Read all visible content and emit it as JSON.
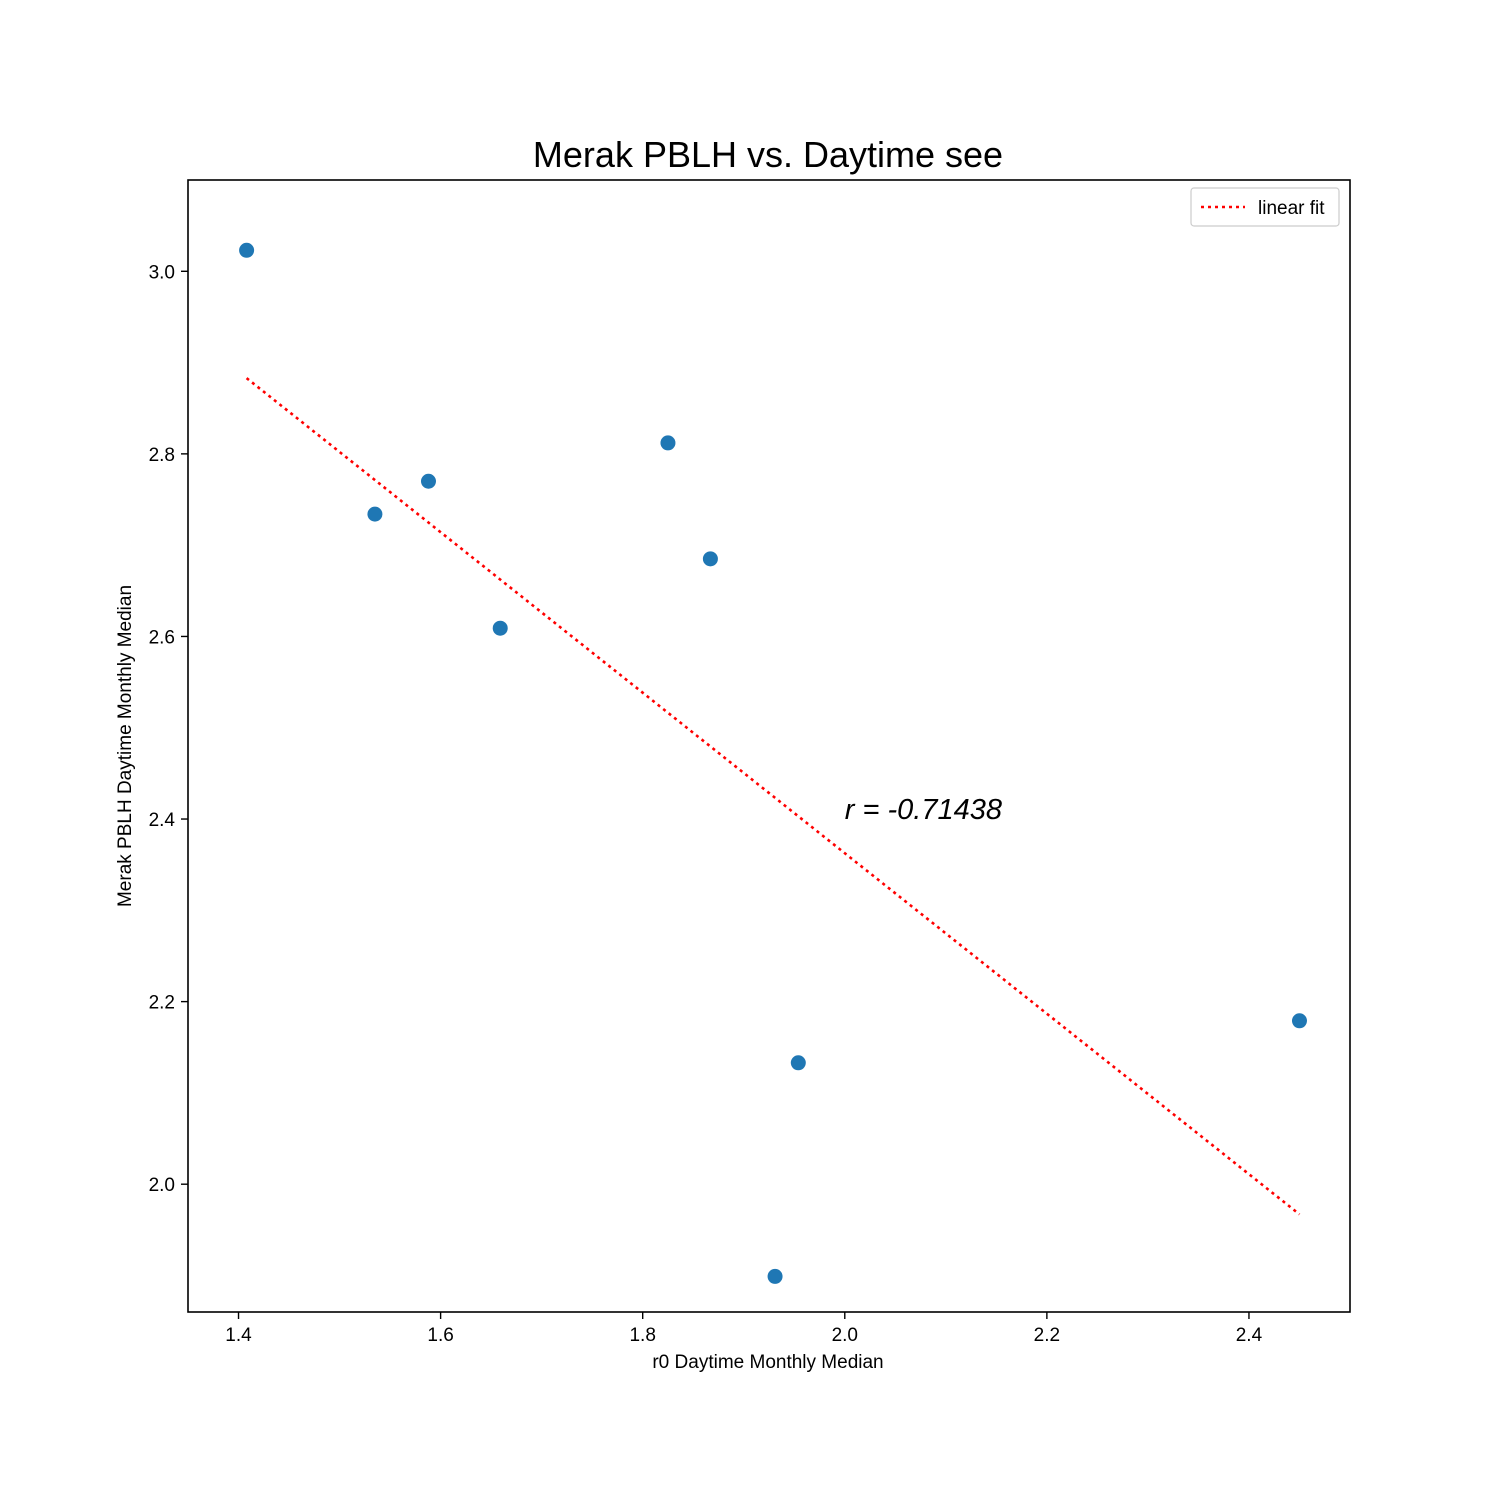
{
  "chart_data": {
    "type": "scatter",
    "title": "Merak PBLH vs. Daytime see",
    "xlabel": "r0 Daytime Monthly Median",
    "ylabel": "Merak PBLH Daytime Monthly Median",
    "xlim": [
      1.35,
      2.5
    ],
    "ylim": [
      1.86,
      3.1
    ],
    "x_ticks": [
      1.4,
      1.6,
      1.8,
      2.0,
      2.2,
      2.4
    ],
    "y_ticks": [
      2.0,
      2.2,
      2.4,
      2.6,
      2.8,
      3.0
    ],
    "x_tick_labels": [
      "1.4",
      "1.6",
      "1.8",
      "2.0",
      "2.2",
      "2.4"
    ],
    "y_tick_labels": [
      "2.0",
      "2.2",
      "2.4",
      "2.6",
      "2.8",
      "3.0"
    ],
    "grid": false,
    "legend_position": "top-right",
    "series": [
      {
        "type": "scatter",
        "color": "#1f77b4",
        "points": [
          {
            "x": 1.408,
            "y": 3.023
          },
          {
            "x": 1.535,
            "y": 2.734
          },
          {
            "x": 1.588,
            "y": 2.77
          },
          {
            "x": 1.659,
            "y": 2.609
          },
          {
            "x": 1.825,
            "y": 2.812
          },
          {
            "x": 1.867,
            "y": 2.685
          },
          {
            "x": 1.954,
            "y": 2.133
          },
          {
            "x": 1.931,
            "y": 1.899
          },
          {
            "x": 2.45,
            "y": 2.179
          }
        ]
      },
      {
        "name": "linear fit",
        "type": "line",
        "style": "dotted",
        "color": "#ff0000",
        "points": [
          {
            "x": 1.408,
            "y": 2.883
          },
          {
            "x": 2.45,
            "y": 1.967
          }
        ]
      }
    ],
    "annotations": [
      {
        "text": "r = -0.71438",
        "x": 2.0,
        "y": 2.4
      }
    ]
  }
}
